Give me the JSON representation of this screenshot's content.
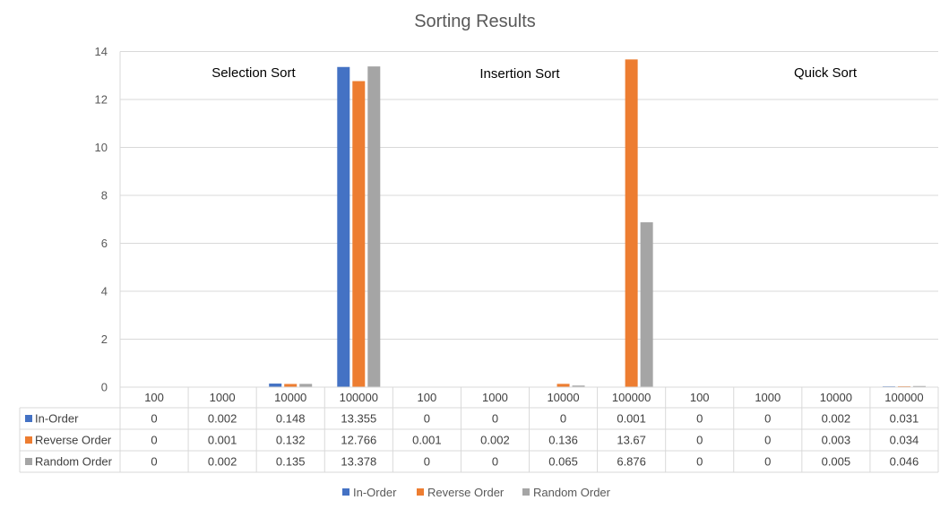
{
  "chart_data": {
    "type": "bar",
    "title": "Sorting Results",
    "group_labels": [
      "Selection Sort",
      "Insertion Sort",
      "Quick Sort"
    ],
    "categories": [
      "100",
      "1000",
      "10000",
      "100000",
      "100",
      "1000",
      "10000",
      "100000",
      "100",
      "1000",
      "10000",
      "100000"
    ],
    "series": [
      {
        "name": "In-Order",
        "color": "#4472C4",
        "values": [
          "0",
          "0.002",
          "0.148",
          "13.355",
          "0",
          "0",
          "0",
          "0.001",
          "0",
          "0",
          "0.002",
          "0.031"
        ]
      },
      {
        "name": "Reverse Order",
        "color": "#ED7D31",
        "values": [
          "0",
          "0.001",
          "0.132",
          "12.766",
          "0.001",
          "0.002",
          "0.136",
          "13.67",
          "0",
          "0",
          "0.003",
          "0.034"
        ]
      },
      {
        "name": "Random Order",
        "color": "#A5A5A5",
        "values": [
          "0",
          "0.002",
          "0.135",
          "13.378",
          "0",
          "0",
          "0.065",
          "6.876",
          "0",
          "0",
          "0.005",
          "0.046"
        ]
      }
    ],
    "yticks": [
      "0",
      "2",
      "4",
      "6",
      "8",
      "10",
      "12",
      "14"
    ],
    "ylim": [
      0,
      14
    ],
    "grid": true,
    "legend_position": "bottom",
    "data_table": true
  }
}
